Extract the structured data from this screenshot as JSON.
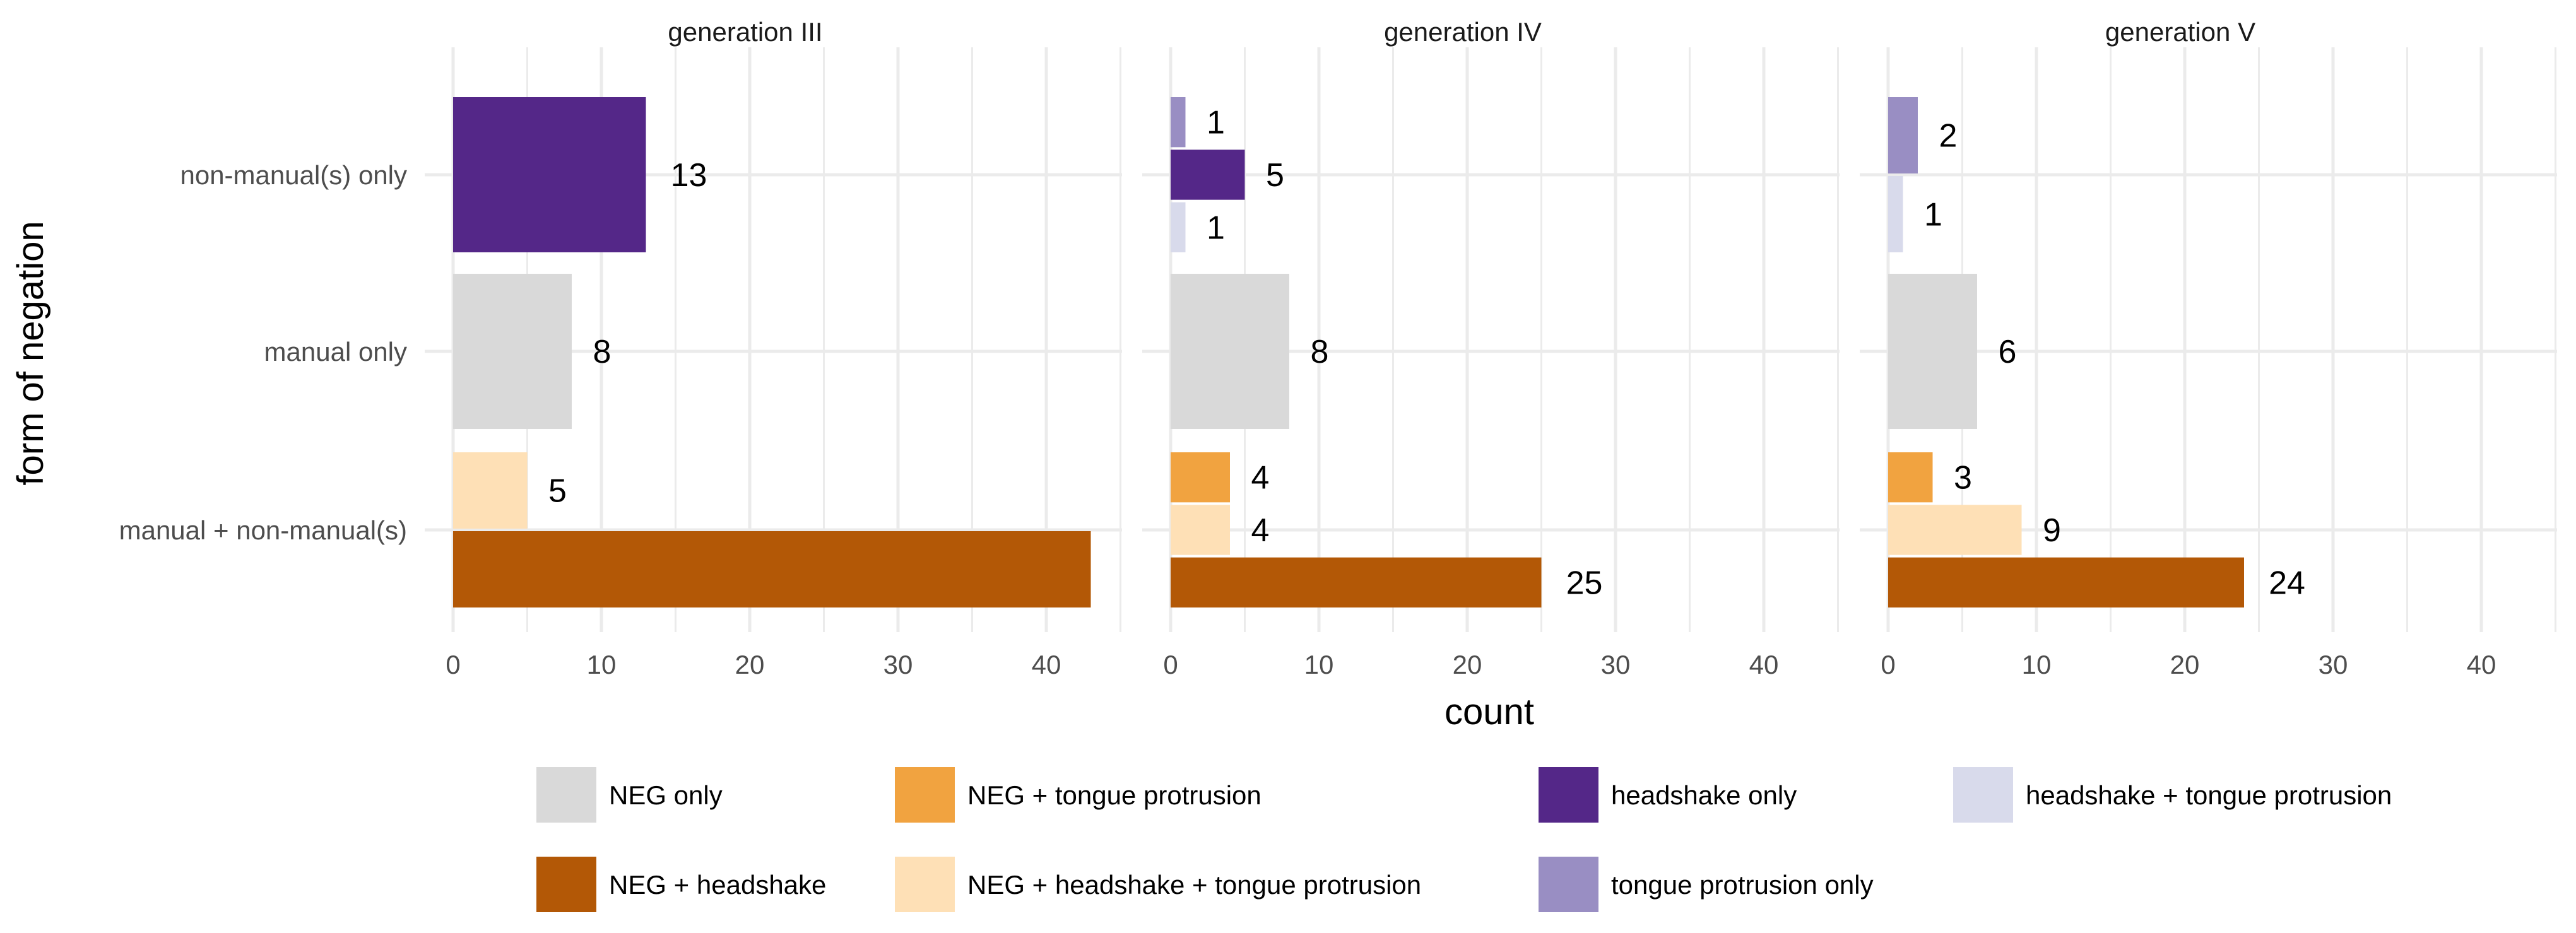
{
  "chart_data": {
    "type": "bar",
    "orientation": "horizontal",
    "xlabel": "count",
    "ylabel": "form of negation",
    "xlim": [
      0,
      45
    ],
    "xticks": [
      0,
      10,
      20,
      30,
      40
    ],
    "categories": [
      "non-manual(s) only",
      "manual only",
      "manual + non-manual(s)"
    ],
    "panels": [
      {
        "title": "generation III",
        "groups": [
          {
            "category": "non-manual(s) only",
            "bars": [
              {
                "series": "headshake only",
                "value": 13,
                "label": "13"
              }
            ]
          },
          {
            "category": "manual only",
            "bars": [
              {
                "series": "NEG only",
                "value": 8,
                "label": "8"
              }
            ]
          },
          {
            "category": "manual + non-manual(s)",
            "bars": [
              {
                "series": "NEG + headshake + tongue protrusion",
                "value": 5,
                "label": "5"
              },
              {
                "series": "NEG + headshake",
                "value": 43,
                "label": ""
              }
            ]
          }
        ]
      },
      {
        "title": "generation IV",
        "groups": [
          {
            "category": "non-manual(s) only",
            "bars": [
              {
                "series": "tongue protrusion only",
                "value": 1,
                "label": "1"
              },
              {
                "series": "headshake only",
                "value": 5,
                "label": "5"
              },
              {
                "series": "headshake + tongue protrusion",
                "value": 1,
                "label": "1"
              }
            ]
          },
          {
            "category": "manual only",
            "bars": [
              {
                "series": "NEG only",
                "value": 8,
                "label": "8"
              }
            ]
          },
          {
            "category": "manual + non-manual(s)",
            "bars": [
              {
                "series": "NEG + tongue protrusion",
                "value": 4,
                "label": "4"
              },
              {
                "series": "NEG + headshake + tongue protrusion",
                "value": 4,
                "label": "4"
              },
              {
                "series": "NEG + headshake",
                "value": 25,
                "label": "25"
              }
            ]
          }
        ]
      },
      {
        "title": "generation V",
        "groups": [
          {
            "category": "non-manual(s) only",
            "bars": [
              {
                "series": "tongue protrusion only",
                "value": 2,
                "label": "2"
              },
              {
                "series": "headshake + tongue protrusion",
                "value": 1,
                "label": "1"
              }
            ]
          },
          {
            "category": "manual only",
            "bars": [
              {
                "series": "NEG only",
                "value": 6,
                "label": "6"
              }
            ]
          },
          {
            "category": "manual + non-manual(s)",
            "bars": [
              {
                "series": "NEG + tongue protrusion",
                "value": 3,
                "label": "3"
              },
              {
                "series": "NEG + headshake + tongue protrusion",
                "value": 9,
                "label": "9"
              },
              {
                "series": "NEG + headshake",
                "value": 24,
                "label": "24"
              }
            ]
          }
        ]
      }
    ],
    "legend": {
      "placement": "bottom",
      "items": [
        {
          "label": "NEG only",
          "color": "#d9d9d9"
        },
        {
          "label": "NEG + headshake",
          "color": "#b35806"
        },
        {
          "label": "NEG + tongue protrusion",
          "color": "#f1a340"
        },
        {
          "label": "NEG + headshake + tongue protrusion",
          "color": "#fee0b6"
        },
        {
          "label": "headshake only",
          "color": "#542788"
        },
        {
          "label": "tongue protrusion only",
          "color": "#998ec3"
        },
        {
          "label": "headshake + tongue protrusion",
          "color": "#d8daeb"
        }
      ]
    }
  }
}
